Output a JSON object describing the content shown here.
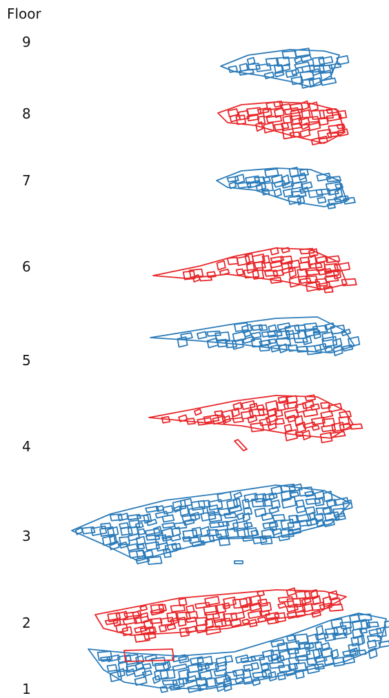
{
  "figure": {
    "axis_title": "Floor",
    "colors": {
      "odd_floor": "#2b7bb9",
      "even_floor": "#e8262a"
    },
    "floors": [
      {
        "label": "9",
        "color": "#2b7bb9"
      },
      {
        "label": "8",
        "color": "#e8262a"
      },
      {
        "label": "7",
        "color": "#2b7bb9"
      },
      {
        "label": "6",
        "color": "#e8262a"
      },
      {
        "label": "5",
        "color": "#2b7bb9"
      },
      {
        "label": "4",
        "color": "#e8262a"
      },
      {
        "label": "3",
        "color": "#2b7bb9"
      },
      {
        "label": "2",
        "color": "#e8262a"
      },
      {
        "label": "1",
        "color": "#2b7bb9"
      }
    ]
  }
}
